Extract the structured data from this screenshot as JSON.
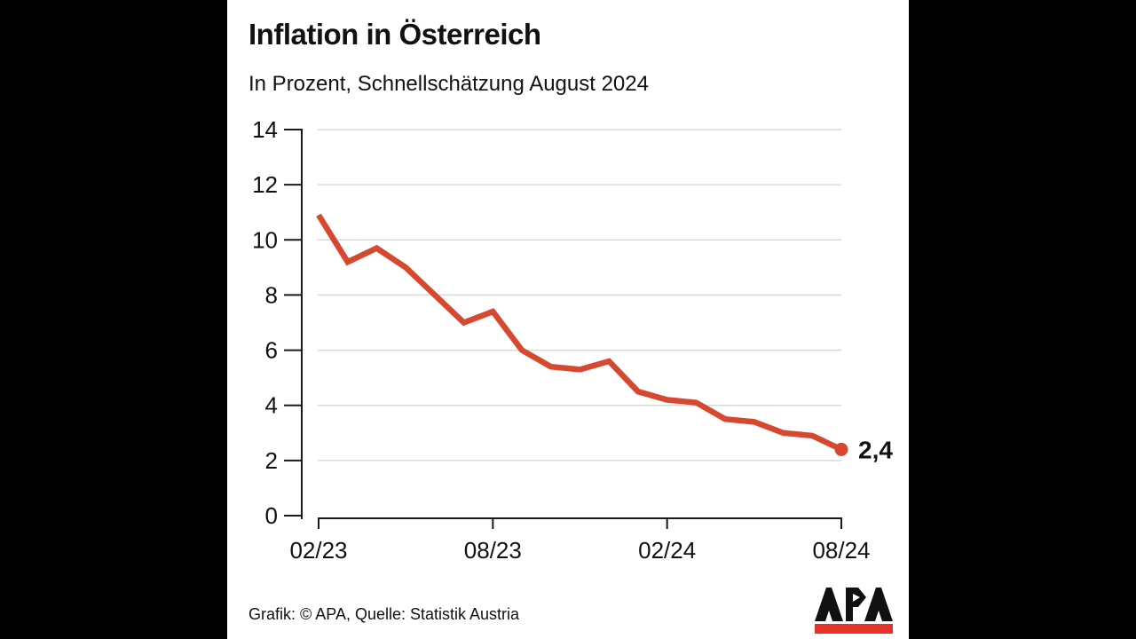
{
  "window": {
    "background": "#000000",
    "panel_background": "#ffffff"
  },
  "header": {
    "title": "Inflation in Österreich",
    "subtitle": "In Prozent, Schnellschätzung August 2024"
  },
  "chart_data": {
    "type": "line",
    "title": "Inflation in Österreich",
    "subtitle": "In Prozent, Schnellschätzung August 2024",
    "x": [
      "02/23",
      "03/23",
      "04/23",
      "05/23",
      "06/23",
      "07/23",
      "08/23",
      "09/23",
      "10/23",
      "11/23",
      "12/23",
      "01/24",
      "02/24",
      "03/24",
      "04/24",
      "05/24",
      "06/24",
      "07/24",
      "08/24"
    ],
    "values": [
      10.9,
      9.2,
      9.7,
      9.0,
      8.0,
      7.0,
      7.4,
      6.0,
      5.4,
      5.3,
      5.6,
      4.5,
      4.2,
      4.1,
      3.5,
      3.4,
      3.0,
      2.9,
      2.4
    ],
    "x_axis_tick_labels": [
      "02/23",
      "08/23",
      "02/24",
      "08/24"
    ],
    "y_axis_ticks": [
      0,
      2,
      4,
      6,
      8,
      10,
      12,
      14
    ],
    "ylim": [
      0,
      14
    ],
    "grid": "horizontal",
    "legend": "none",
    "line_color": "#d6482f",
    "end_point_label": "2,4",
    "last_value": 2.4
  },
  "footer": {
    "credit": "Grafik: © APA, Quelle: Statistik Austria",
    "logo": {
      "text": "APA",
      "bar_color": "#e63228",
      "letter_color": "#111111"
    }
  },
  "colors": {
    "line": "#d6482f",
    "grid": "#d9d9d9",
    "axis": "#1a1a1a",
    "text": "#111111"
  }
}
